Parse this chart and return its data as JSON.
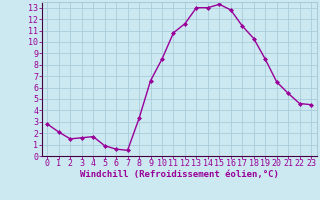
{
  "x": [
    0,
    1,
    2,
    3,
    4,
    5,
    6,
    7,
    8,
    9,
    10,
    11,
    12,
    13,
    14,
    15,
    16,
    17,
    18,
    19,
    20,
    21,
    22,
    23
  ],
  "y": [
    2.8,
    2.1,
    1.5,
    1.6,
    1.7,
    0.9,
    0.6,
    0.5,
    3.3,
    6.6,
    8.5,
    10.8,
    11.6,
    13.0,
    13.0,
    13.3,
    12.8,
    11.4,
    10.3,
    8.5,
    6.5,
    5.5,
    4.6,
    4.5
  ],
  "line_color": "#990099",
  "marker": "D",
  "marker_size": 2.0,
  "bg_color": "#cce8f0",
  "grid_color": "#aaccda",
  "xlabel": "Windchill (Refroidissement éolien,°C)",
  "xlim": [
    -0.5,
    23.5
  ],
  "ylim": [
    0,
    13.5
  ],
  "xticks": [
    0,
    1,
    2,
    3,
    4,
    5,
    6,
    7,
    8,
    9,
    10,
    11,
    12,
    13,
    14,
    15,
    16,
    17,
    18,
    19,
    20,
    21,
    22,
    23
  ],
  "yticks": [
    0,
    1,
    2,
    3,
    4,
    5,
    6,
    7,
    8,
    9,
    10,
    11,
    12,
    13
  ],
  "tick_color": "#990099",
  "label_fontsize": 6.5,
  "tick_fontsize": 6.0,
  "linewidth": 1.0
}
